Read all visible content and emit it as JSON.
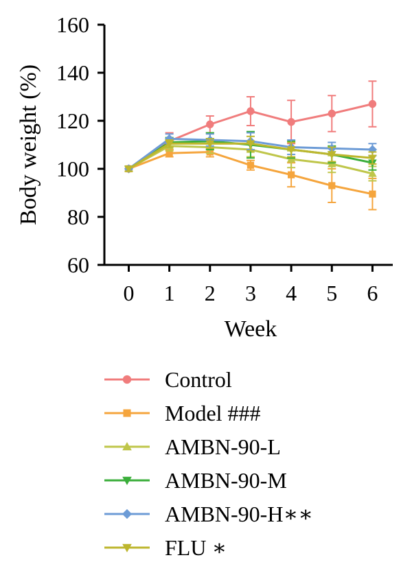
{
  "chart_data": {
    "type": "line",
    "xlabel": "Week",
    "ylabel": "Body weight (%)",
    "xlim": [
      -0.6,
      6.5
    ],
    "ylim": [
      60,
      160
    ],
    "xticks": [
      0,
      1,
      2,
      3,
      4,
      5,
      6
    ],
    "yticks": [
      60,
      80,
      100,
      120,
      140,
      160
    ],
    "x": [
      0,
      1,
      2,
      3,
      4,
      5,
      6
    ],
    "grid": false,
    "legend_position": "bottom",
    "series": [
      {
        "name": "Control",
        "color": "#F07C7C",
        "marker": "circle",
        "values": [
          100,
          111.5,
          118.5,
          124,
          119.5,
          123,
          127
        ],
        "errors": [
          1,
          3.5,
          3.5,
          6,
          9,
          7.5,
          9.5
        ]
      },
      {
        "name": "Model ###",
        "color": "#F5A53D",
        "marker": "square",
        "values": [
          100,
          106.5,
          107,
          101.5,
          97.5,
          93,
          89.5
        ],
        "errors": [
          1,
          1.5,
          2,
          2,
          5,
          7,
          6.5
        ]
      },
      {
        "name": "AMBN-90-L",
        "color": "#BFC64A",
        "marker": "triangle-up",
        "values": [
          100,
          109.5,
          109,
          108,
          104,
          102,
          98
        ],
        "errors": [
          1,
          2,
          2.5,
          3,
          3.5,
          3.5,
          3
        ]
      },
      {
        "name": "AMBN-90-M",
        "color": "#3AAE3A",
        "marker": "triangle-down",
        "values": [
          100,
          111,
          111.5,
          110,
          108,
          106,
          102.5
        ],
        "errors": [
          1,
          2,
          3.5,
          5.5,
          3.5,
          3.5,
          3
        ]
      },
      {
        "name": "AMBN-90-H∗∗",
        "color": "#6C9BD6",
        "marker": "diamond",
        "values": [
          100,
          112.5,
          112,
          111.5,
          109,
          108.5,
          108
        ],
        "errors": [
          1,
          2,
          2.5,
          3.5,
          3,
          2.5,
          2.5
        ]
      },
      {
        "name": "FLU ∗",
        "color": "#BDB62D",
        "marker": "triangle-down",
        "values": [
          100,
          110.5,
          110.5,
          110.5,
          108,
          106,
          104.5
        ],
        "errors": [
          1,
          1.5,
          2,
          3,
          3,
          3,
          2.5
        ]
      }
    ]
  }
}
